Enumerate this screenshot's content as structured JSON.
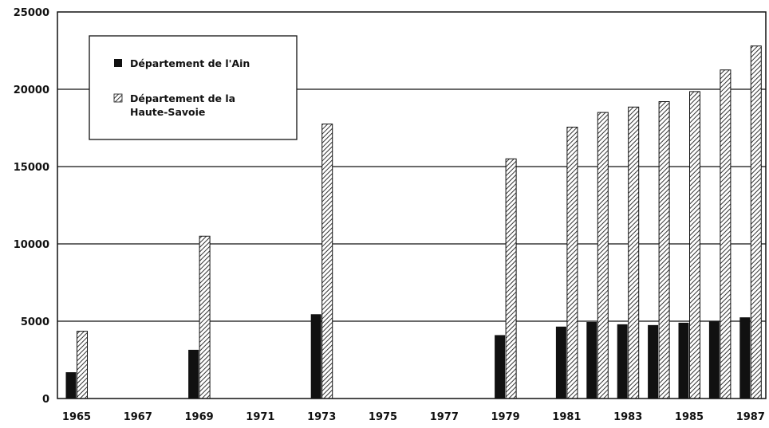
{
  "chart_data": {
    "type": "bar",
    "categories": [
      "1965",
      "1966",
      "1967",
      "1968",
      "1969",
      "1970",
      "1971",
      "1972",
      "1973",
      "1974",
      "1975",
      "1976",
      "1977",
      "1978",
      "1979",
      "1980",
      "1981",
      "1982",
      "1983",
      "1984",
      "1985",
      "1986",
      "1987"
    ],
    "x_tick_labels": [
      "1965",
      "1967",
      "1969",
      "1971",
      "1973",
      "1975",
      "1977",
      "1979",
      "1981",
      "1983",
      "1985",
      "1987"
    ],
    "y_tick_labels": [
      "0",
      "5000",
      "10000",
      "15000",
      "20000",
      "25000"
    ],
    "ylim": [
      0,
      25000
    ],
    "grid": true,
    "legend_position": "top-left",
    "series": [
      {
        "name": "Département de l'Ain",
        "color": "#111111",
        "pattern": "solid",
        "values": [
          1700,
          null,
          null,
          null,
          3150,
          null,
          null,
          null,
          5450,
          null,
          null,
          null,
          null,
          null,
          4100,
          null,
          4650,
          4950,
          4800,
          4750,
          4900,
          5000,
          5250
        ]
      },
      {
        "name": "Département de la Haute-Savoie",
        "name_lines": [
          "Département de la",
          "Haute-Savoie"
        ],
        "color": "#555555",
        "pattern": "hatched",
        "values": [
          4350,
          null,
          null,
          null,
          10500,
          null,
          null,
          null,
          17750,
          null,
          null,
          null,
          null,
          null,
          15500,
          null,
          17550,
          18500,
          18850,
          19200,
          19850,
          21250,
          22800
        ]
      }
    ]
  }
}
